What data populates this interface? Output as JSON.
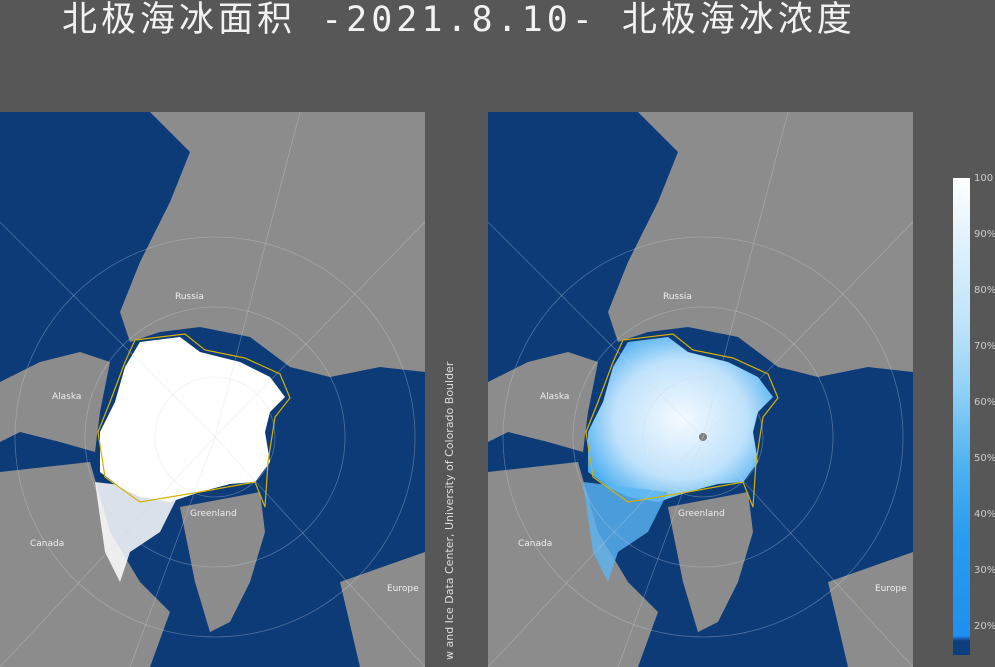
{
  "title": "北极海冰面积 -2021.8.10- 北极海冰浓度",
  "maps": [
    {
      "name": "sea-ice-extent",
      "labels": {
        "russia": "Russia",
        "alaska": "Alaska",
        "canada": "Canada",
        "greenland": "Greenland",
        "europe": "Europe"
      }
    },
    {
      "name": "sea-ice-concentration",
      "labels": {
        "russia": "Russia",
        "alaska": "Alaska",
        "canada": "Canada",
        "greenland": "Greenland",
        "europe": "Europe"
      }
    }
  ],
  "credit": "w and Ice Data Center, University of Colorado Boulder",
  "colorbar": {
    "ticks": [
      "100",
      "90%",
      "80%",
      "70%",
      "60%",
      "50%",
      "40%",
      "30%",
      "20%"
    ]
  },
  "colors": {
    "ocean": "#0c3b78",
    "land": "#8c8c8c",
    "ice": "#ffffff",
    "median_line": "#d4b200",
    "background": "#575757"
  }
}
